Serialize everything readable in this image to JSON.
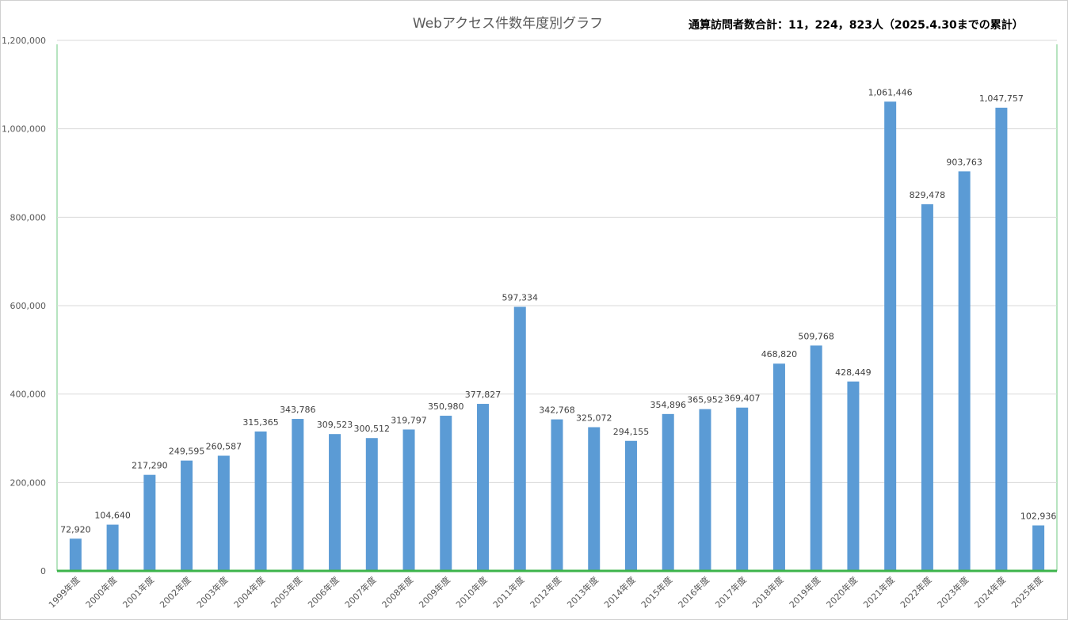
{
  "title": "Webアクセス件数年度別グラフ",
  "total_note": "通算訪問者数合計：11，224，823人（2025.4.30までの累計）",
  "colors": {
    "bar": "#5b9bd5",
    "grid": "#d9d9d9",
    "baseline": "#3cb44b",
    "plot_border": "#b7e4c0"
  },
  "chart_data": {
    "type": "bar",
    "title": "Webアクセス件数年度別グラフ",
    "xlabel": "",
    "ylabel": "",
    "ylim": [
      0,
      1200000
    ],
    "yticks": [
      "0",
      "200,000",
      "400,000",
      "600,000",
      "800,000",
      "1,000,000",
      "1,200,000"
    ],
    "ytick_values": [
      0,
      200000,
      400000,
      600000,
      800000,
      1000000,
      1200000
    ],
    "grid": true,
    "legend": "none",
    "categories": [
      "1999年度",
      "2000年度",
      "2001年度",
      "2002年度",
      "2003年度",
      "2004年度",
      "2005年度",
      "2006年度",
      "2007年度",
      "2008年度",
      "2009年度",
      "2010年度",
      "2011年度",
      "2012年度",
      "2013年度",
      "2014年度",
      "2015年度",
      "2016年度",
      "2017年度",
      "2018年度",
      "2019年度",
      "2020年度",
      "2021年度",
      "2022年度",
      "2023年度",
      "2024年度",
      "2025年度"
    ],
    "values": [
      72920,
      104640,
      217290,
      249595,
      260587,
      315365,
      343786,
      309523,
      300512,
      319797,
      350980,
      377827,
      597334,
      342768,
      325072,
      294155,
      354896,
      365952,
      369407,
      468820,
      509768,
      428449,
      1061446,
      829478,
      903763,
      1047757,
      102936
    ],
    "data_labels": [
      "72,920",
      "104,640",
      "217,290",
      "249,595",
      "260,587",
      "315,365",
      "343,786",
      "309,523",
      "300,512",
      "319,797",
      "350,980",
      "377,827",
      "597,334",
      "342,768",
      "325,072",
      "294,155",
      "354,896",
      "365,952",
      "369,407",
      "468,820",
      "509,768",
      "428,449",
      "1,061,446",
      "829,478",
      "903,763",
      "1,047,757",
      "102,936"
    ]
  }
}
